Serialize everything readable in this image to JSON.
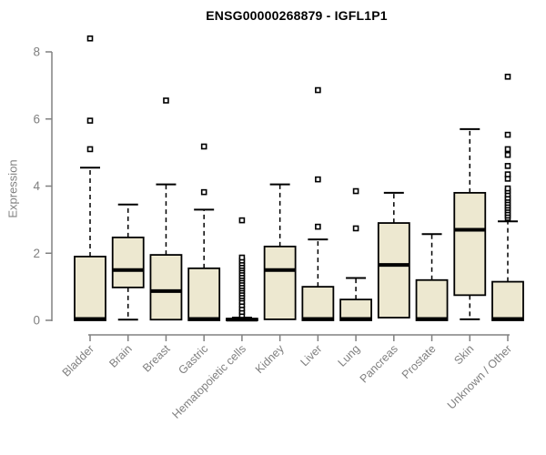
{
  "chart_data": {
    "type": "boxplot",
    "title": "ENSG00000268879 - IGFL1P1",
    "ylabel": "Expression",
    "xlabel": "",
    "ylim": [
      0,
      8
    ],
    "yticks": [
      0,
      2,
      4,
      6,
      8
    ],
    "grid": false,
    "legend": "none",
    "categories": [
      "Bladder",
      "Brain",
      "Breast",
      "Gastric",
      "Hematopoietic cells",
      "Kidney",
      "Liver",
      "Lung",
      "Pancreas",
      "Prostate",
      "Skin",
      "Unknown / Other"
    ],
    "boxes": [
      {
        "category": "Bladder",
        "whisker_low": 0,
        "q1": 0,
        "median": 0.04,
        "q3": 1.9,
        "whisker_high": 4.55,
        "outliers": [
          5.1,
          5.95,
          8.4
        ]
      },
      {
        "category": "Brain",
        "whisker_low": 0.02,
        "q1": 0.98,
        "median": 1.5,
        "q3": 2.47,
        "whisker_high": 3.45,
        "outliers": []
      },
      {
        "category": "Breast",
        "whisker_low": 0,
        "q1": 0.02,
        "median": 0.87,
        "q3": 1.95,
        "whisker_high": 4.05,
        "outliers": [
          6.55
        ]
      },
      {
        "category": "Gastric",
        "whisker_low": 0,
        "q1": 0,
        "median": 0.04,
        "q3": 1.55,
        "whisker_high": 3.3,
        "outliers": [
          3.82,
          5.18
        ]
      },
      {
        "category": "Hematopoietic cells",
        "whisker_low": 0,
        "q1": 0,
        "median": 0.02,
        "q3": 0.05,
        "whisker_high": 0.08,
        "outliers": [
          0.15,
          0.25,
          0.35,
          0.45,
          0.55,
          0.65,
          0.72,
          0.8,
          0.88,
          0.95,
          1.02,
          1.1,
          1.18,
          1.25,
          1.32,
          1.4,
          1.48,
          1.55,
          1.62,
          1.7,
          1.78,
          1.87,
          2.98
        ]
      },
      {
        "category": "Kidney",
        "whisker_low": 0,
        "q1": 0.03,
        "median": 1.5,
        "q3": 2.2,
        "whisker_high": 4.05,
        "outliers": []
      },
      {
        "category": "Liver",
        "whisker_low": 0,
        "q1": 0,
        "median": 0.04,
        "q3": 1.0,
        "whisker_high": 2.41,
        "outliers": [
          2.79,
          4.2,
          6.86
        ]
      },
      {
        "category": "Lung",
        "whisker_low": 0,
        "q1": 0,
        "median": 0.04,
        "q3": 0.62,
        "whisker_high": 1.26,
        "outliers": [
          2.74,
          3.85
        ]
      },
      {
        "category": "Pancreas",
        "whisker_low": 0,
        "q1": 0.08,
        "median": 1.65,
        "q3": 2.9,
        "whisker_high": 3.8,
        "outliers": []
      },
      {
        "category": "Prostate",
        "whisker_low": 0,
        "q1": 0,
        "median": 0.04,
        "q3": 1.2,
        "whisker_high": 2.57,
        "outliers": []
      },
      {
        "category": "Skin",
        "whisker_low": 0.03,
        "q1": 0.75,
        "median": 2.7,
        "q3": 3.8,
        "whisker_high": 5.7,
        "outliers": []
      },
      {
        "category": "Unknown / Other",
        "whisker_low": 0,
        "q1": 0,
        "median": 0.04,
        "q3": 1.15,
        "whisker_high": 2.95,
        "outliers": [
          3.05,
          3.12,
          3.2,
          3.28,
          3.35,
          3.42,
          3.5,
          3.58,
          3.65,
          3.75,
          3.85,
          3.93,
          4.22,
          4.35,
          4.6,
          4.93,
          5.1,
          5.53,
          7.26
        ]
      }
    ],
    "colors": {
      "box_fill": "#EDE8D0",
      "box_stroke": "#000000",
      "median": "#000000",
      "outlier_stroke": "#000000",
      "outlier_fill": "#ffffff",
      "axis": "#808080",
      "tick_label": "#808080",
      "title": "#000000"
    }
  }
}
